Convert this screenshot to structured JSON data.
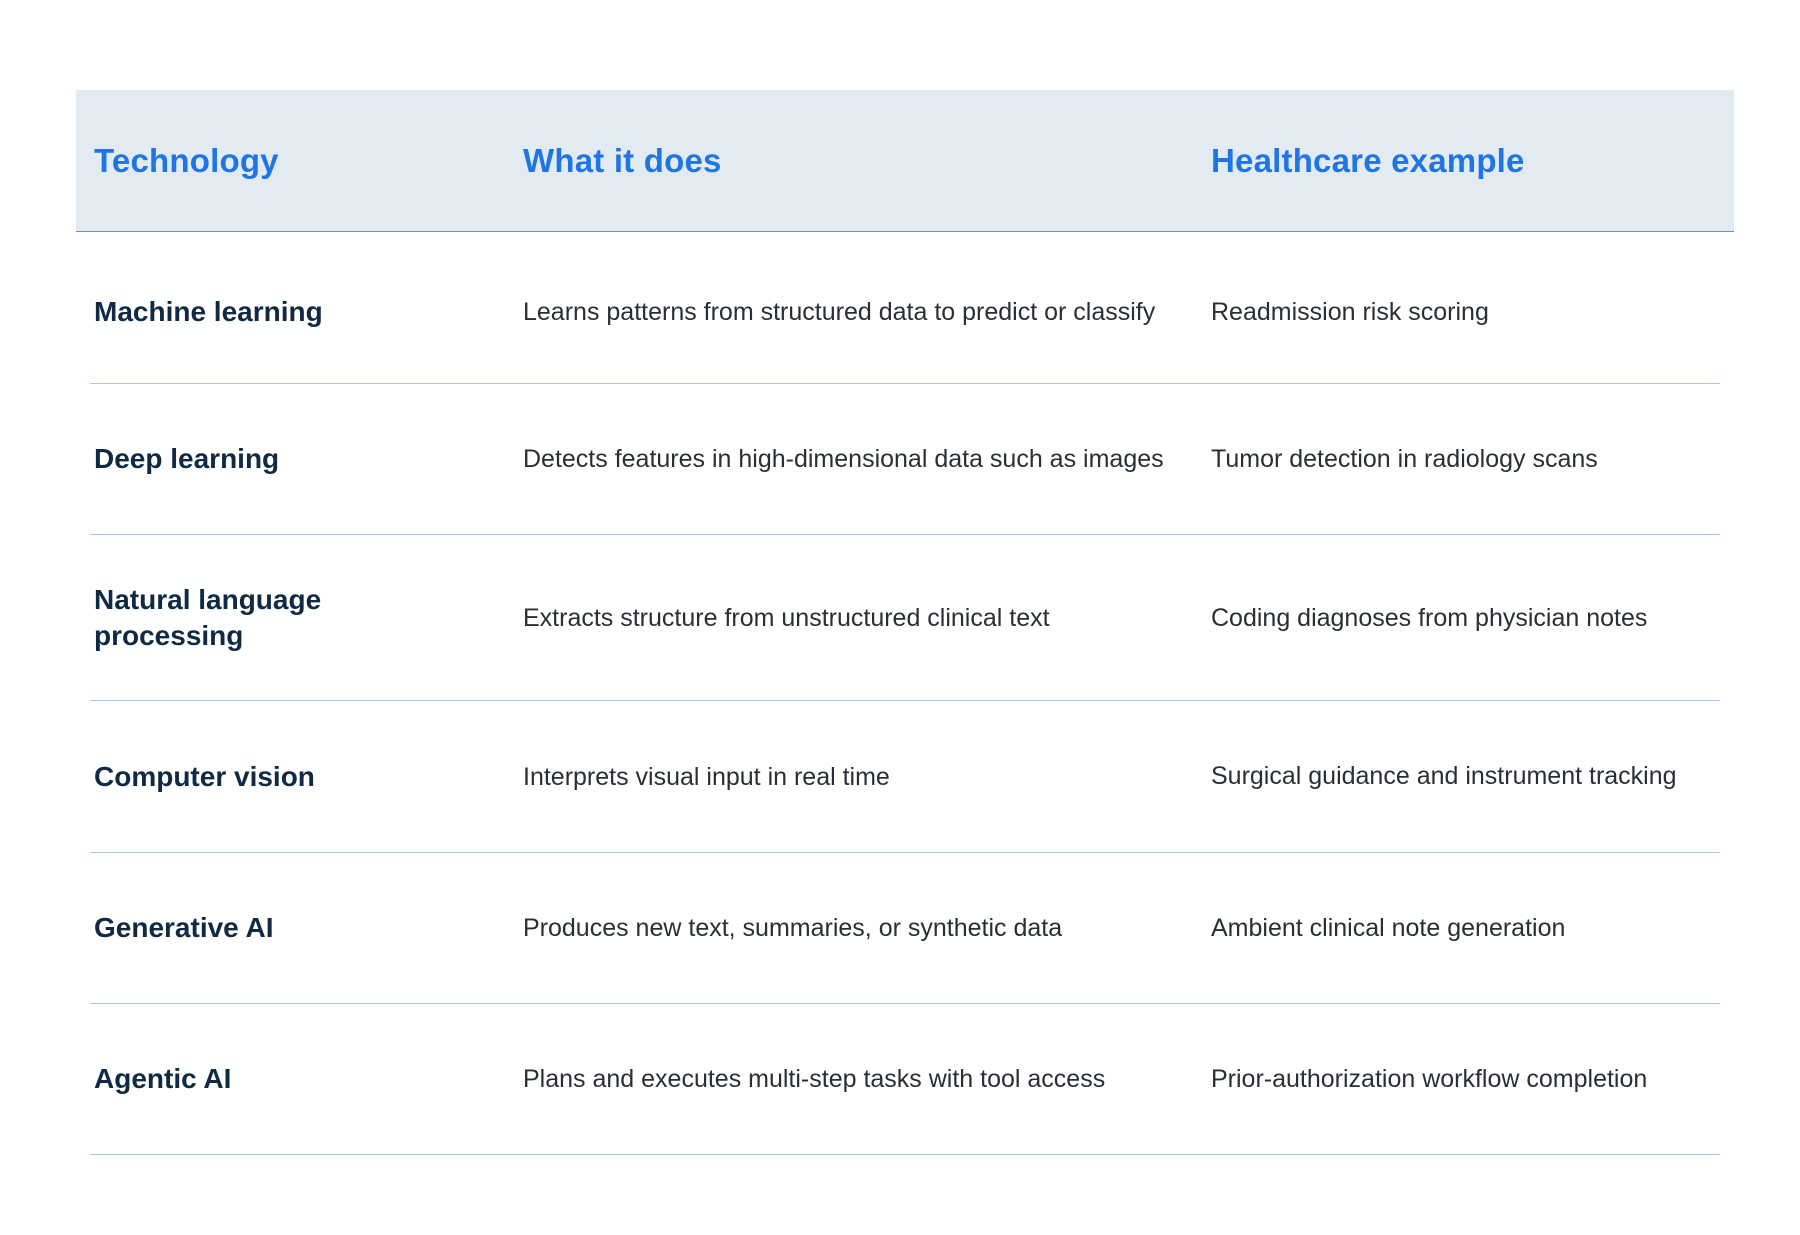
{
  "table": {
    "headers": {
      "technology": "Technology",
      "what_it_does": "What it does",
      "healthcare_example": "Healthcare example"
    },
    "rows": [
      {
        "technology": "Machine learning",
        "what_it_does": "Learns patterns from structured data to predict or classify",
        "healthcare_example": "Readmission risk scoring"
      },
      {
        "technology": "Deep learning",
        "what_it_does": "Detects features in high-dimensional data such as images",
        "healthcare_example": "Tumor detection in radiology scans"
      },
      {
        "technology": "Natural language processing",
        "what_it_does": "Extracts structure from unstructured clinical text",
        "healthcare_example": "Coding diagnoses from physician notes"
      },
      {
        "technology": "Computer vision",
        "what_it_does": "Interprets visual input in real time",
        "healthcare_example": "Surgical guidance and instrument tracking"
      },
      {
        "technology": "Generative AI",
        "what_it_does": "Produces new text, summaries, or synthetic data",
        "healthcare_example": "Ambient clinical note generation"
      },
      {
        "technology": "Agentic AI",
        "what_it_does": "Plans and executes multi-step tasks with tool access",
        "healthcare_example": "Prior-authorization workflow completion"
      }
    ]
  },
  "colors": {
    "header_background": "#e3ebf2",
    "header_text": "#1f75e6",
    "body_heading_text": "#102a43",
    "row_divider": "#a9c6f0"
  }
}
